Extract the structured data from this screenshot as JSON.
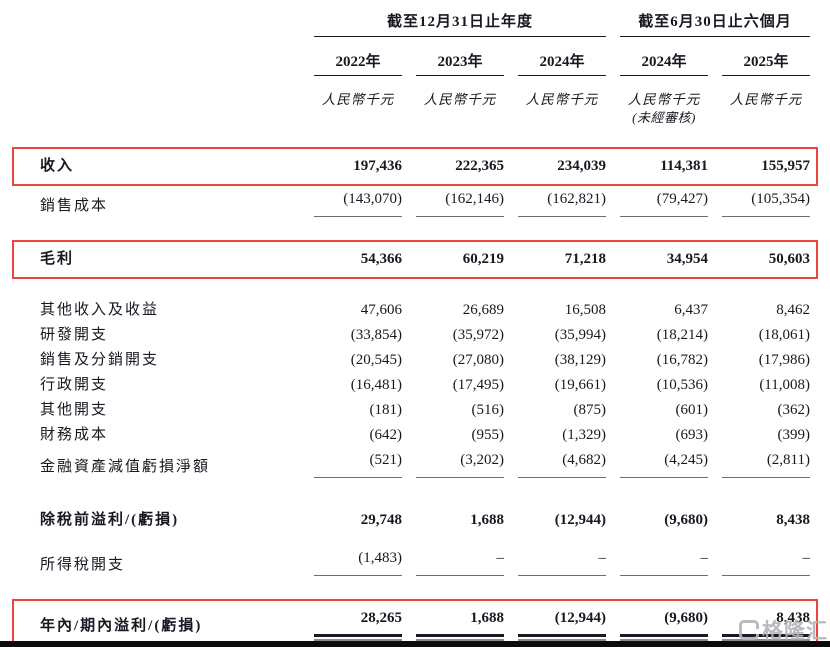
{
  "colors": {
    "highlight_red": "#e9463f",
    "text": "#181822",
    "rule_dark": "#1a1a24",
    "rule_gray": "#6e6e6e",
    "bottom_bar": "#0c0c0c",
    "watermark_gray": "#b4b4b8"
  },
  "watermark": {
    "text": "格隆汇"
  },
  "table": {
    "column_groups": [
      {
        "label": "截至12月31日止年度",
        "span": 3
      },
      {
        "label": "截至6月30日止六個月",
        "span": 2
      }
    ],
    "columns": [
      {
        "year": "2022年",
        "unit": "人民幣千元",
        "note": ""
      },
      {
        "year": "2023年",
        "unit": "人民幣千元",
        "note": ""
      },
      {
        "year": "2024年",
        "unit": "人民幣千元",
        "note": ""
      },
      {
        "year": "2024年",
        "unit": "人民幣千元",
        "note": "(未經審核)"
      },
      {
        "year": "2025年",
        "unit": "人民幣千元",
        "note": ""
      }
    ],
    "rows": [
      {
        "label": "收入",
        "style": "highlight",
        "values": [
          "197,436",
          "222,365",
          "234,039",
          "114,381",
          "155,957"
        ]
      },
      {
        "label": "銷售成本",
        "style": "underline",
        "values": [
          "(143,070)",
          "(162,146)",
          "(162,821)",
          "(79,427)",
          "(105,354)"
        ]
      },
      {
        "label": "毛利",
        "style": "highlight",
        "values": [
          "54,366",
          "60,219",
          "71,218",
          "34,954",
          "50,603"
        ]
      },
      {
        "label": "其他收入及收益",
        "style": "plain",
        "values": [
          "47,606",
          "26,689",
          "16,508",
          "6,437",
          "8,462"
        ]
      },
      {
        "label": "研發開支",
        "style": "plain",
        "values": [
          "(33,854)",
          "(35,972)",
          "(35,994)",
          "(18,214)",
          "(18,061)"
        ]
      },
      {
        "label": "銷售及分銷開支",
        "style": "plain",
        "values": [
          "(20,545)",
          "(27,080)",
          "(38,129)",
          "(16,782)",
          "(17,986)"
        ]
      },
      {
        "label": "行政開支",
        "style": "plain",
        "values": [
          "(16,481)",
          "(17,495)",
          "(19,661)",
          "(10,536)",
          "(11,008)"
        ]
      },
      {
        "label": "其他開支",
        "style": "plain",
        "values": [
          "(181)",
          "(516)",
          "(875)",
          "(601)",
          "(362)"
        ]
      },
      {
        "label": "財務成本",
        "style": "plain",
        "values": [
          "(642)",
          "(955)",
          "(1,329)",
          "(693)",
          "(399)"
        ]
      },
      {
        "label": "金融資產減值虧損淨額",
        "style": "underline",
        "values": [
          "(521)",
          "(3,202)",
          "(4,682)",
          "(4,245)",
          "(2,811)"
        ]
      },
      {
        "label": "除稅前溢利/(虧損)",
        "style": "bold",
        "values": [
          "29,748",
          "1,688",
          "(12,944)",
          "(9,680)",
          "8,438"
        ]
      },
      {
        "label": "所得稅開支",
        "style": "underline",
        "values": [
          "(1,483)",
          "–",
          "–",
          "–",
          "–"
        ]
      },
      {
        "label": "年內/期內溢利/(虧損)",
        "style": "highlight-double",
        "values": [
          "28,265",
          "1,688",
          "(12,944)",
          "(9,680)",
          "8,438"
        ]
      }
    ]
  }
}
